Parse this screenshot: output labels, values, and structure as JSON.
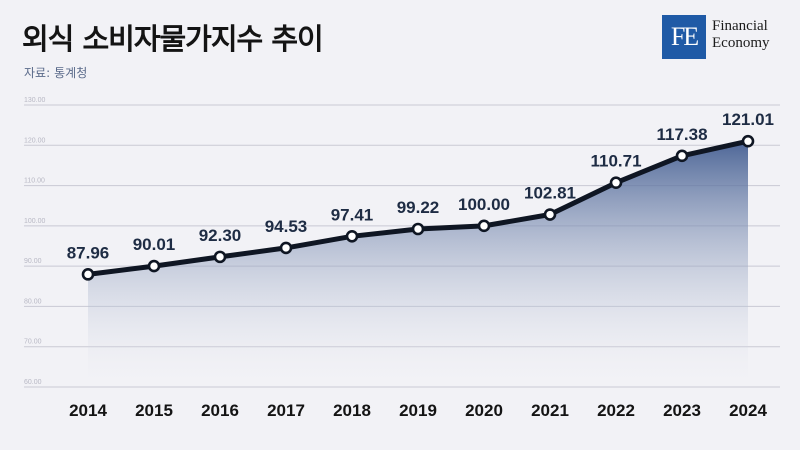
{
  "header": {
    "title": "외식 소비자물가지수 추이",
    "source_label": "자료:",
    "source_value": "통계청"
  },
  "logo": {
    "mark": "FE",
    "line1": "Financial",
    "line2": "Economy"
  },
  "colors": {
    "line": "#0f1623",
    "area_top": "#3f5a8f",
    "marker_fill": "#ffffff",
    "grid": "#c9c9d4",
    "logo_bg": "#1f5aa6"
  },
  "chart_data": {
    "type": "area",
    "title": "외식 소비자물가지수 추이",
    "xlabel": "",
    "ylabel": "",
    "categories": [
      "2014",
      "2015",
      "2016",
      "2017",
      "2018",
      "2019",
      "2020",
      "2021",
      "2022",
      "2023",
      "2024"
    ],
    "values": [
      87.96,
      90.01,
      92.3,
      94.53,
      97.41,
      99.22,
      100.0,
      102.81,
      110.71,
      117.38,
      121.01
    ],
    "data_labels": [
      "87.96",
      "90.01",
      "92.30",
      "94.53",
      "97.41",
      "99.22",
      "100.00",
      "102.81",
      "110.71",
      "117.38",
      "121.01"
    ],
    "yticks": [
      60,
      70,
      80,
      90,
      100,
      110,
      120,
      130
    ],
    "ytick_labels": [
      "60.00",
      "70.00",
      "80.00",
      "90.00",
      "100.00",
      "110.00",
      "120.00",
      "130.00"
    ],
    "ylim": [
      60,
      130
    ],
    "grid": true,
    "legend": "none"
  }
}
